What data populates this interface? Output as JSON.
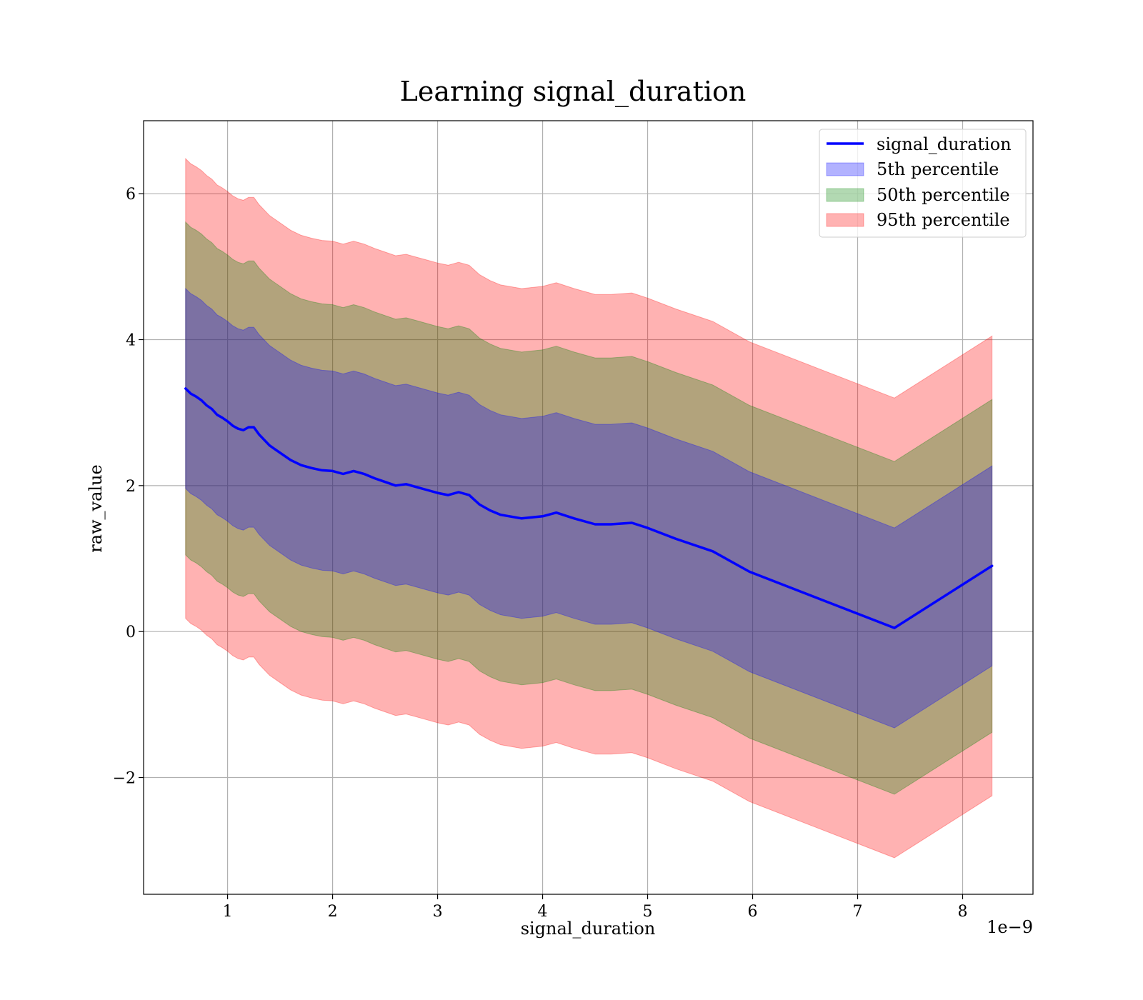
{
  "chart_data": {
    "type": "line",
    "title": "Learning signal_duration",
    "xlabel": "signal_duration",
    "ylabel": "raw_value",
    "x_offset_text": "1e−9",
    "xlim": [
      0.2,
      8.67
    ],
    "ylim": [
      -3.6,
      7.0
    ],
    "x_ticks": [
      1,
      2,
      3,
      4,
      5,
      6,
      7,
      8
    ],
    "x_tick_labels": [
      "1",
      "2",
      "3",
      "4",
      "5",
      "6",
      "7",
      "8"
    ],
    "y_ticks": [
      -2,
      0,
      2,
      4,
      6
    ],
    "y_tick_labels": [
      "−2",
      "0",
      "2",
      "4",
      "6"
    ],
    "grid": true,
    "legend_position": "top-right",
    "legend": [
      {
        "label": "signal_duration",
        "kind": "line",
        "color": "#0000ff"
      },
      {
        "label": "5th percentile",
        "kind": "band",
        "color": "#0000ff"
      },
      {
        "label": "50th percentile",
        "kind": "band",
        "color": "#008000"
      },
      {
        "label": "95th percentile",
        "kind": "band",
        "color": "#ff0000"
      }
    ],
    "x": [
      0.6,
      0.65,
      0.7,
      0.75,
      0.8,
      0.85,
      0.9,
      0.95,
      1.0,
      1.05,
      1.1,
      1.15,
      1.2,
      1.25,
      1.3,
      1.4,
      1.5,
      1.6,
      1.7,
      1.8,
      1.9,
      2.0,
      2.1,
      2.2,
      2.3,
      2.4,
      2.5,
      2.6,
      2.7,
      2.8,
      2.9,
      3.0,
      3.1,
      3.2,
      3.3,
      3.4,
      3.5,
      3.6,
      3.8,
      4.0,
      4.13,
      4.3,
      4.5,
      4.65,
      4.85,
      5.0,
      5.27,
      5.62,
      5.97,
      7.35,
      8.28
    ],
    "series": [
      {
        "name": "signal_duration",
        "color": "#0000ff",
        "values": [
          3.33,
          3.26,
          3.22,
          3.17,
          3.1,
          3.05,
          2.97,
          2.93,
          2.88,
          2.82,
          2.78,
          2.76,
          2.8,
          2.8,
          2.7,
          2.55,
          2.45,
          2.35,
          2.28,
          2.24,
          2.21,
          2.2,
          2.16,
          2.2,
          2.16,
          2.1,
          2.05,
          2.0,
          2.02,
          1.98,
          1.94,
          1.9,
          1.87,
          1.91,
          1.87,
          1.74,
          1.66,
          1.6,
          1.55,
          1.58,
          1.63,
          1.55,
          1.47,
          1.47,
          1.49,
          1.42,
          1.27,
          1.1,
          0.82,
          0.05,
          0.9
        ]
      }
    ],
    "bands": [
      {
        "name": "95th percentile",
        "color": "#ff0000",
        "opacity": 0.3,
        "half_width": 3.15
      },
      {
        "name": "50th percentile",
        "color": "#008000",
        "opacity": 0.3,
        "half_width": 2.28
      },
      {
        "name": "5th percentile",
        "color": "#0000ff",
        "opacity": 0.3,
        "half_width": 1.37
      }
    ]
  }
}
